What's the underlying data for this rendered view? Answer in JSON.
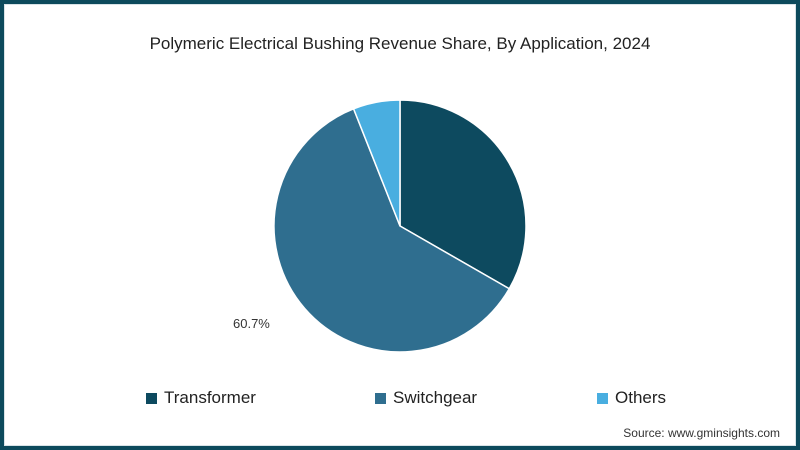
{
  "chart_data": {
    "type": "pie",
    "title": "Polymeric Electrical Bushing Revenue Share, By Application, 2024",
    "categories": [
      "Transformer",
      "Switchgear",
      "Others"
    ],
    "values": [
      33.3,
      60.7,
      6.0
    ],
    "colors": [
      "#0d4a5f",
      "#2f6e8f",
      "#49aee0"
    ],
    "data_labels": {
      "Switchgear": "60.7%"
    },
    "legend_position": "bottom",
    "start_angle_deg": 0,
    "direction": "clockwise"
  },
  "title": "Polymeric Electrical Bushing Revenue Share, By Application, 2024",
  "label": "60.7%",
  "legend": [
    {
      "label": "Transformer",
      "color": "#0d4a5f"
    },
    {
      "label": "Switchgear",
      "color": "#2f6e8f"
    },
    {
      "label": "Others",
      "color": "#49aee0"
    }
  ],
  "source": "Source: www.gminsights.com",
  "frame_color": "#0d4a5c"
}
